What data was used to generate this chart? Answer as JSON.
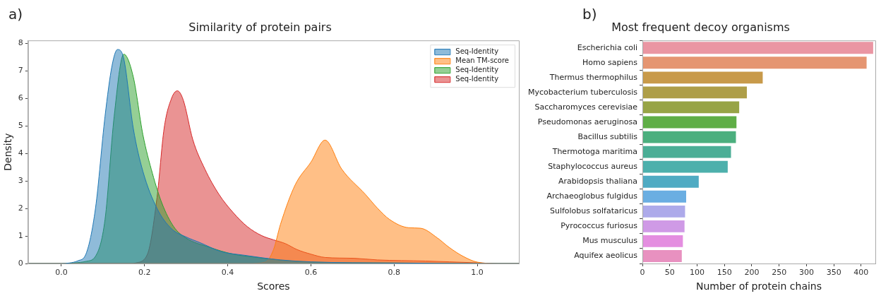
{
  "chart_data": [
    {
      "type": "area",
      "title": "Similarity of protein pairs",
      "xlabel": "Scores",
      "ylabel": "Density",
      "annotations": [
        "a)"
      ],
      "xlim": [
        -0.08,
        1.1
      ],
      "xticks": [
        {
          "value": 0,
          "label": "0.0"
        },
        {
          "value": 0.2,
          "label": "0.2"
        },
        {
          "value": 0.4,
          "label": "0.4"
        },
        {
          "value": 0.6,
          "label": "0.6"
        },
        {
          "value": 0.8,
          "label": "0.8"
        },
        {
          "value": 1,
          "label": "1.0"
        }
      ],
      "ylim": [
        0,
        8.1
      ],
      "yticks": [
        0,
        1,
        2,
        3,
        4,
        5,
        6,
        7,
        8
      ],
      "grid": false,
      "legend": "top right",
      "series": [
        {
          "name": "Seq-Identity",
          "color": "#1f77b4",
          "x": [
            -0.08,
            0.0,
            0.02,
            0.04,
            0.059,
            0.082,
            0.105,
            0.122,
            0.135,
            0.15,
            0.173,
            0.196,
            0.23,
            0.265,
            0.299,
            0.333,
            0.385,
            0.44,
            0.527,
            0.6,
            0.8,
            1.0,
            1.1
          ],
          "values": [
            0,
            0,
            0.02,
            0.1,
            0.34,
            2.0,
            5.35,
            7.2,
            7.77,
            7.44,
            4.9,
            3.35,
            2.0,
            1.26,
            0.97,
            0.76,
            0.43,
            0.3,
            0.13,
            0.06,
            0.02,
            0,
            0
          ]
        },
        {
          "name": "Mean TM-score",
          "color": "#ff7f0e",
          "x": [
            -0.08,
            0.45,
            0.49,
            0.51,
            0.527,
            0.562,
            0.6,
            0.634,
            0.674,
            0.731,
            0.76,
            0.789,
            0.835,
            0.864,
            0.904,
            0.932,
            0.966,
            1.0,
            1.05,
            1.1
          ],
          "values": [
            0,
            0,
            0.05,
            0.5,
            1.43,
            2.85,
            3.68,
            4.48,
            3.43,
            2.51,
            2.01,
            1.6,
            1.3,
            1.28,
            0.93,
            0.59,
            0.26,
            0.05,
            0,
            0
          ]
        },
        {
          "name": "Seq-Identity",
          "color": "#2ca02c",
          "x": [
            -0.08,
            0.0,
            0.03,
            0.06,
            0.082,
            0.105,
            0.127,
            0.15,
            0.173,
            0.196,
            0.219,
            0.242,
            0.27,
            0.299,
            0.356,
            0.413,
            0.47,
            0.527,
            0.6,
            0.8,
            1.0,
            1.1
          ],
          "values": [
            0,
            0,
            0.02,
            0.08,
            0.26,
            1.6,
            5.35,
            7.6,
            6.77,
            4.68,
            3.27,
            2.18,
            1.34,
            0.93,
            0.59,
            0.34,
            0.22,
            0.12,
            0.05,
            0.02,
            0,
            0
          ]
        },
        {
          "name": "Seq-Identity",
          "color": "#d62728",
          "x": [
            -0.08,
            0.17,
            0.179,
            0.207,
            0.23,
            0.247,
            0.265,
            0.279,
            0.293,
            0.316,
            0.345,
            0.379,
            0.413,
            0.447,
            0.482,
            0.51,
            0.539,
            0.566,
            0.6,
            0.634,
            0.703,
            0.76,
            0.875,
            0.99,
            1.05,
            1.1
          ],
          "values": [
            0,
            0,
            0.02,
            0.34,
            2.4,
            4.9,
            6.0,
            6.27,
            5.94,
            4.5,
            3.43,
            2.51,
            1.85,
            1.34,
            1.01,
            0.86,
            0.72,
            0.51,
            0.34,
            0.22,
            0.19,
            0.13,
            0.09,
            0.03,
            0,
            0
          ]
        }
      ]
    },
    {
      "type": "bar",
      "orientation": "horizontal",
      "title": "Most frequent decoy organisms",
      "xlabel": "Number of protein chains",
      "annotations": [
        "b)"
      ],
      "categories": [
        "Escherichia coli",
        "Homo sapiens",
        "Thermus thermophilus",
        "Mycobacterium tuberculosis",
        "Saccharomyces cerevisiae",
        "Pseudomonas aeruginosa",
        "Bacillus subtilis",
        "Thermotoga maritima",
        "Staphylococcus aureus",
        "Arabidopsis thaliana",
        "Archaeoglobus fulgidus",
        "Sulfolobus solfataricus",
        "Pyrococcus furiosus",
        "Mus musculus",
        "Aquifex aeolicus"
      ],
      "values": [
        422,
        410,
        220,
        191,
        177,
        172,
        171,
        162,
        156,
        103,
        80,
        78,
        77,
        74,
        72
      ],
      "colors": [
        "#ea96a3",
        "#e59571",
        "#c89a4a",
        "#ae9e48",
        "#97a446",
        "#5fae46",
        "#4baf7e",
        "#4bae96",
        "#4db0ac",
        "#4fabc3",
        "#6aaee2",
        "#adaaea",
        "#cf9ae6",
        "#e48ee0",
        "#e891c0"
      ],
      "xlim": [
        0,
        426
      ],
      "xticks": [
        0,
        50,
        100,
        150,
        200,
        250,
        300,
        350,
        400
      ],
      "grid": false
    }
  ]
}
